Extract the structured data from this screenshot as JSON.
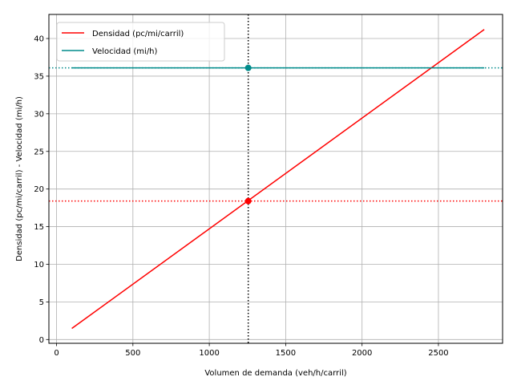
{
  "chart_data": {
    "type": "line",
    "xlabel": "Volumen de demanda (veh/h/carril)",
    "ylabel": "Densidad (pc/mi/carril) - Velocidad (mi/h)",
    "xlim": [
      -50,
      2920
    ],
    "ylim": [
      -0.5,
      43.2
    ],
    "xticks": [
      0,
      500,
      1000,
      1500,
      2000,
      2500
    ],
    "yticks": [
      0,
      5,
      10,
      15,
      20,
      25,
      30,
      35,
      40
    ],
    "grid": true,
    "legend_position": "top-left",
    "series": [
      {
        "name": "Densidad (pc/mi/carril)",
        "color": "#ff0000",
        "x": [
          100,
          2800
        ],
        "y": [
          1.47,
          41.2
        ]
      },
      {
        "name": "Velocidad (mi/h)",
        "color": "#008b8b",
        "x": [
          100,
          2800
        ],
        "y": [
          36.1,
          36.1
        ]
      }
    ],
    "reference_lines": {
      "vertical": {
        "x": 1255,
        "color": "#000000"
      },
      "horizontal": [
        {
          "y": 18.4,
          "color": "#ff0000"
        },
        {
          "y": 36.1,
          "color": "#008b8b"
        }
      ]
    },
    "markers": [
      {
        "x": 1255,
        "y": 18.4,
        "color": "#ff0000"
      },
      {
        "x": 1255,
        "y": 36.1,
        "color": "#008b8b"
      }
    ]
  }
}
